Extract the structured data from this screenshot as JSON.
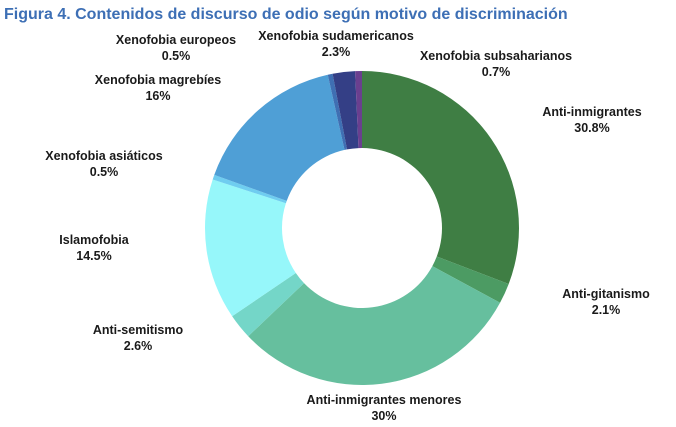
{
  "chart_data": {
    "type": "pie",
    "title": "Figura 4. Contenidos de discurso de odio según motivo de discriminación",
    "slices": [
      {
        "name": "Anti-inmigrantes",
        "value": 30.8,
        "label": "30.8%",
        "color": "#3f7e44"
      },
      {
        "name": "Anti-gitanismo",
        "value": 2.1,
        "label": "2.1%",
        "color": "#4c9b63"
      },
      {
        "name": "Anti-inmigrantes menores",
        "value": 30,
        "label": "30%",
        "color": "#66bf9e"
      },
      {
        "name": "Anti-semitismo",
        "value": 2.6,
        "label": "2.6%",
        "color": "#74d6c8"
      },
      {
        "name": "Islamofobia",
        "value": 14.5,
        "label": "14.5%",
        "color": "#96f7fa"
      },
      {
        "name": "Xenofobia asiáticos",
        "value": 0.5,
        "label": "0.5%",
        "color": "#6fcdf0"
      },
      {
        "name": "Xenofobia magrebíes",
        "value": 16,
        "label": "16%",
        "color": "#4f9fd6"
      },
      {
        "name": "Xenofobia europeos",
        "value": 0.5,
        "label": "0.5%",
        "color": "#3f6fb3"
      },
      {
        "name": "Xenofobia sudamericanos",
        "value": 2.3,
        "label": "2.3%",
        "color": "#343f86"
      },
      {
        "name": "Xenofobia subsaharianos",
        "value": 0.7,
        "label": "0.7%",
        "color": "#6a3f8f"
      }
    ]
  }
}
